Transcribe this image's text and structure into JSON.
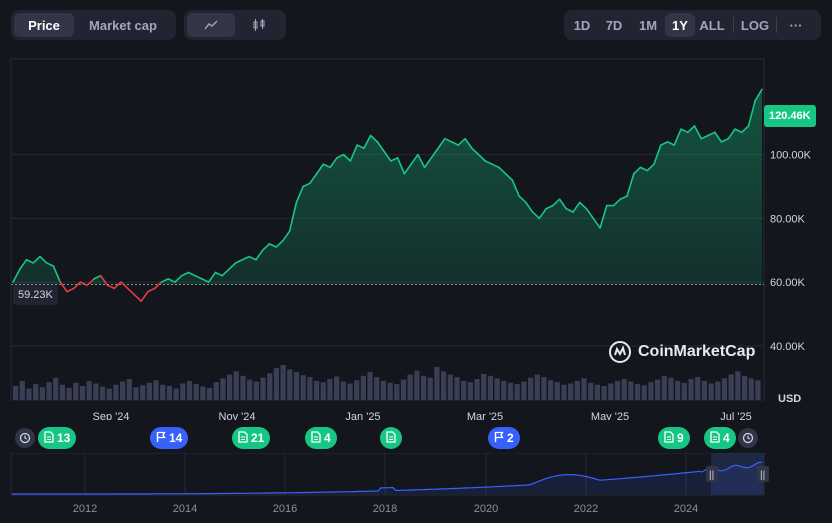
{
  "tabs": {
    "price": "Price",
    "market_cap": "Market cap"
  },
  "chart_type_icons": [
    "line-chart-icon",
    "candlestick-icon"
  ],
  "ranges": [
    "1D",
    "7D",
    "1M",
    "1Y",
    "ALL"
  ],
  "active_range": "1Y",
  "log_label": "LOG",
  "more_label": "···",
  "currency": "USD",
  "watermark": "CoinMarketCap",
  "current_price_label": "120.46K",
  "open_price_label": "59.23K",
  "markers": [
    {
      "type": "news",
      "count": "13"
    },
    {
      "type": "flag",
      "count": "14"
    },
    {
      "type": "news",
      "count": "21"
    },
    {
      "type": "news",
      "count": "4"
    },
    {
      "type": "news",
      "count": ""
    },
    {
      "type": "flag",
      "count": "2"
    },
    {
      "type": "news",
      "count": "9"
    },
    {
      "type": "news",
      "count": "4"
    }
  ],
  "colors": {
    "up": "#16c784",
    "down": "#ea3943",
    "accent": "#3861fb",
    "bg": "#14161d"
  },
  "chart_data": {
    "type": "area",
    "title": "",
    "xlabel": "",
    "ylabel": "USD",
    "ylim": [
      23000,
      130000
    ],
    "yticks": [
      "40.00K",
      "60.00K",
      "80.00K",
      "100.00K"
    ],
    "ytick_values": [
      40000,
      60000,
      80000,
      100000
    ],
    "xticks": [
      "Sep '24",
      "Nov '24",
      "Jan '25",
      "Mar '25",
      "May '25",
      "Jul '25"
    ],
    "baseline": 59230,
    "series": [
      {
        "values": [
          60000,
          64000,
          67000,
          66000,
          68000,
          66000,
          65000,
          60000,
          57000,
          58000,
          60000,
          59000,
          61000,
          62000,
          59000,
          58000,
          60000,
          58000,
          56000,
          54000,
          57000,
          58000,
          60000,
          61000,
          60000,
          62000,
          63000,
          62000,
          61000,
          60000,
          63000,
          62000,
          64000,
          66000,
          67000,
          68000,
          67000,
          70000,
          72000,
          71000,
          73000,
          76000,
          85000,
          90000,
          91000,
          94000,
          97000,
          96000,
          99000,
          100000,
          98000,
          103000,
          102000,
          106000,
          104000,
          101000,
          98000,
          99000,
          94000,
          97000,
          100000,
          96000,
          99000,
          102000,
          105000,
          104000,
          103000,
          105000,
          102000,
          100000,
          98000,
          97000,
          96000,
          94000,
          92000,
          87000,
          85000,
          82000,
          80000,
          83000,
          84000,
          86000,
          83000,
          82000,
          85000,
          83000,
          80000,
          77000,
          84000,
          84000,
          86000,
          87000,
          94000,
          96000,
          95000,
          97000,
          103000,
          104000,
          103000,
          108000,
          107000,
          109000,
          105000,
          106000,
          107000,
          104000,
          105000,
          108000,
          107000,
          109000,
          117000,
          120460
        ]
      }
    ],
    "volume": [
      22,
      30,
      18,
      25,
      20,
      28,
      35,
      24,
      19,
      27,
      22,
      30,
      26,
      21,
      18,
      24,
      29,
      33,
      20,
      23,
      27,
      31,
      24,
      22,
      18,
      26,
      30,
      25,
      21,
      19,
      28,
      34,
      40,
      45,
      38,
      32,
      29,
      35,
      42,
      50,
      55,
      48,
      44,
      39,
      36,
      30,
      28,
      33,
      37,
      29,
      26,
      31,
      38,
      44,
      36,
      30,
      27,
      25,
      32,
      40,
      46,
      38,
      35,
      52,
      45,
      40,
      36,
      30,
      28,
      33,
      41,
      38,
      34,
      30,
      27,
      25,
      29,
      35,
      40,
      36,
      31,
      28,
      24,
      26,
      30,
      34,
      27,
      24,
      22,
      26,
      30,
      33,
      29,
      25,
      23,
      28,
      32,
      38,
      35,
      30,
      27,
      33,
      36,
      30,
      26,
      29,
      34,
      40,
      45,
      38,
      34,
      31
    ],
    "overview": {
      "xticks": [
        "2012",
        "2014",
        "2016",
        "2018",
        "2020",
        "2022",
        "2024"
      ]
    }
  }
}
